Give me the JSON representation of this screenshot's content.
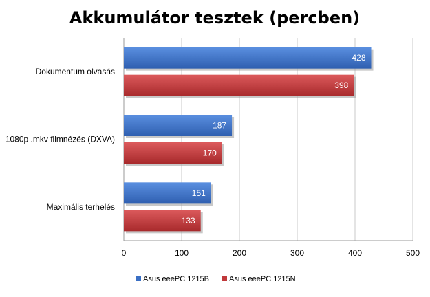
{
  "chart_data": {
    "type": "bar",
    "orientation": "horizontal",
    "title": "Akkumulátor tesztek (percben)",
    "categories": [
      "Dokumentum olvasás",
      "1080p .mkv filmnézés (DXVA)",
      "Maximális terhelés"
    ],
    "series": [
      {
        "name": "Asus eeePC 1215B",
        "values": [
          428,
          187,
          151
        ],
        "color": "#3a6fc4"
      },
      {
        "name": "Asus eeePC 1215N",
        "values": [
          398,
          170,
          133
        ],
        "color": "#c0393b"
      }
    ],
    "xlim": [
      0,
      500
    ],
    "xticks": [
      "0",
      "100",
      "200",
      "300",
      "400",
      "500"
    ],
    "grid": true,
    "legend_position": "bottom"
  }
}
